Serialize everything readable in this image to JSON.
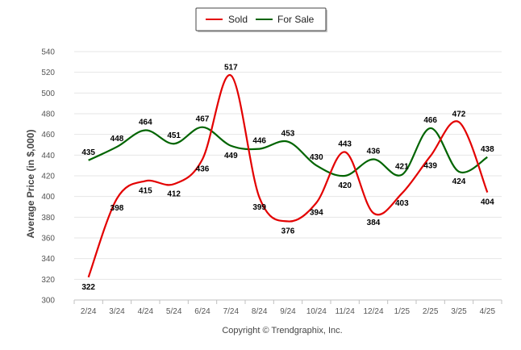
{
  "chart_data": {
    "type": "line",
    "title": "",
    "xlabel": "",
    "ylabel": "Average Price (in $,000)",
    "ylim": [
      300,
      540
    ],
    "yticks": [
      300,
      320,
      340,
      360,
      380,
      400,
      420,
      440,
      460,
      480,
      500,
      520,
      540
    ],
    "categories": [
      "2/24",
      "3/24",
      "4/24",
      "5/24",
      "6/24",
      "7/24",
      "8/24",
      "9/24",
      "10/24",
      "11/24",
      "12/24",
      "1/25",
      "2/25",
      "3/25",
      "4/25"
    ],
    "series": [
      {
        "name": "Sold",
        "color": "#e30000",
        "values": [
          322,
          398,
          415,
          412,
          436,
          517,
          399,
          376,
          394,
          443,
          384,
          403,
          439,
          472,
          404
        ]
      },
      {
        "name": "For Sale",
        "color": "#006400",
        "values": [
          435,
          448,
          464,
          451,
          467,
          449,
          446,
          453,
          430,
          420,
          436,
          421,
          466,
          424,
          438
        ]
      }
    ],
    "grid": true,
    "legend": "top-center",
    "footer": "Copyright © Trendgraphix, Inc."
  }
}
